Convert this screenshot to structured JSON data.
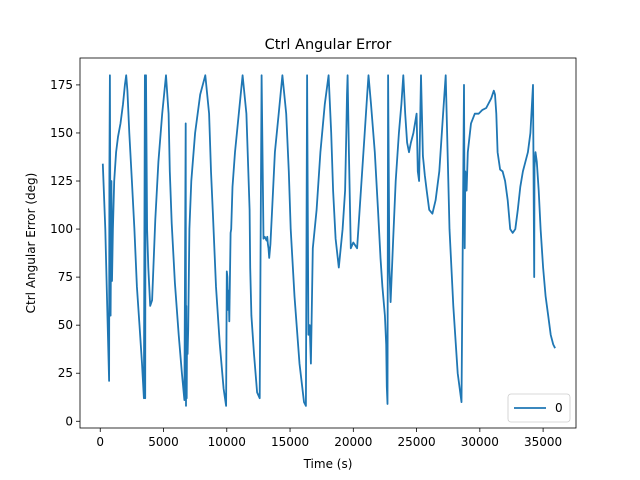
{
  "chart_data": {
    "type": "line",
    "title": "Ctrl Angular Error",
    "xlabel": "Time (s)",
    "ylabel": "Ctrl Angular Error (deg)",
    "xlim": [
      -1600,
      37600
    ],
    "ylim": [
      -3.5,
      189
    ],
    "xticks": [
      0,
      5000,
      10000,
      15000,
      20000,
      25000,
      30000,
      35000
    ],
    "yticks": [
      0,
      25,
      50,
      75,
      100,
      125,
      150,
      175
    ],
    "grid": false,
    "legend_position": "lower-right",
    "series": [
      {
        "name": "0",
        "color": "#1f77b4",
        "x": [
          200,
          400,
          550,
          700,
          720,
          760,
          820,
          880,
          930,
          1000,
          1100,
          1250,
          1400,
          1600,
          1800,
          1950,
          2050,
          2150,
          2300,
          2500,
          2700,
          2900,
          3100,
          3300,
          3450,
          3530,
          3550,
          3570,
          3620,
          3700,
          3800,
          3950,
          4100,
          4200,
          4350,
          4600,
          4900,
          5200,
          5400,
          5500,
          5650,
          5900,
          6200,
          6450,
          6650,
          6750,
          6780,
          6800,
          6830,
          6860,
          6900,
          6950,
          7050,
          7200,
          7500,
          7900,
          8300,
          8600,
          8750,
          8900,
          9150,
          9450,
          9750,
          9950,
          10000,
          10050,
          10100,
          10150,
          10200,
          10300,
          10350,
          10450,
          10650,
          10950,
          11250,
          11550,
          11800,
          11850,
          11950,
          12150,
          12400,
          12600,
          12750,
          12900,
          13000,
          13150,
          13200,
          13250,
          13300,
          13350,
          13450,
          13600,
          13800,
          14100,
          14400,
          14700,
          14900,
          15050,
          15350,
          15750,
          16100,
          16250,
          16350,
          16450,
          16550,
          16650,
          16800,
          17100,
          17400,
          17750,
          18050,
          18250,
          18400,
          18600,
          18850,
          19150,
          19350,
          19450,
          19500,
          19550,
          19650,
          19800,
          20000,
          20300,
          20600,
          20900,
          21100,
          21200,
          21400,
          21700,
          21950,
          22150,
          22300,
          22500,
          22600,
          22650,
          22700,
          22750,
          22850,
          22950,
          23150,
          23350,
          23600,
          23800,
          23950,
          24100,
          24250,
          24400,
          24550,
          24750,
          25000,
          25100,
          25200,
          25350,
          25500,
          25550,
          25650,
          25800,
          26000,
          26250,
          26500,
          26800,
          27100,
          27300,
          27450,
          27600,
          27900,
          28250,
          28550,
          28750,
          28800,
          28850,
          28900,
          28950,
          29050,
          29300,
          29600,
          29900,
          30200,
          30500,
          30900,
          31100,
          31200,
          31300,
          31400,
          31600,
          31800,
          32000,
          32200,
          32400,
          32600,
          32800,
          33000,
          33200,
          33400,
          33600,
          33800,
          34000,
          34200,
          34300,
          34320,
          34400,
          34500,
          34650,
          34800,
          35000,
          35200,
          35400,
          35600,
          35800,
          35950
        ],
        "y": [
          134,
          100,
          60,
          21,
          130,
          180,
          55,
          125,
          73,
          100,
          125,
          140,
          148,
          155,
          165,
          175,
          180,
          172,
          150,
          125,
          100,
          70,
          50,
          30,
          12,
          180,
          12,
          100,
          180,
          100,
          80,
          60,
          63,
          80,
          105,
          135,
          160,
          180,
          160,
          130,
          103,
          72,
          45,
          25,
          11,
          155,
          8,
          60,
          12,
          42,
          35,
          48,
          100,
          125,
          150,
          170,
          180,
          160,
          130,
          108,
          70,
          40,
          17,
          8,
          78,
          75,
          58,
          68,
          52,
          98,
          100,
          122,
          140,
          160,
          180,
          160,
          110,
          80,
          55,
          35,
          15,
          12,
          180,
          95,
          96,
          94,
          96,
          92,
          90,
          85,
          92,
          112,
          140,
          160,
          180,
          160,
          130,
          100,
          65,
          30,
          10,
          8,
          180,
          45,
          50,
          30,
          90,
          110,
          140,
          165,
          180,
          150,
          120,
          95,
          80,
          100,
          120,
          150,
          170,
          180,
          140,
          90,
          93,
          90,
          120,
          150,
          170,
          180,
          165,
          140,
          110,
          85,
          70,
          55,
          40,
          18,
          9,
          180,
          80,
          62,
          95,
          125,
          150,
          165,
          180,
          160,
          145,
          140,
          145,
          150,
          160,
          130,
          125,
          180,
          138,
          135,
          128,
          120,
          110,
          108,
          115,
          130,
          160,
          180,
          140,
          100,
          60,
          25,
          10,
          175,
          90,
          130,
          125,
          120,
          140,
          155,
          160,
          160,
          162,
          163,
          168,
          172,
          170,
          160,
          140,
          131,
          130,
          125,
          115,
          100,
          98,
          100,
          110,
          122,
          130,
          135,
          140,
          150,
          175,
          75,
          132,
          140,
          135,
          120,
          100,
          80,
          65,
          55,
          45,
          40,
          38
        ]
      }
    ]
  }
}
